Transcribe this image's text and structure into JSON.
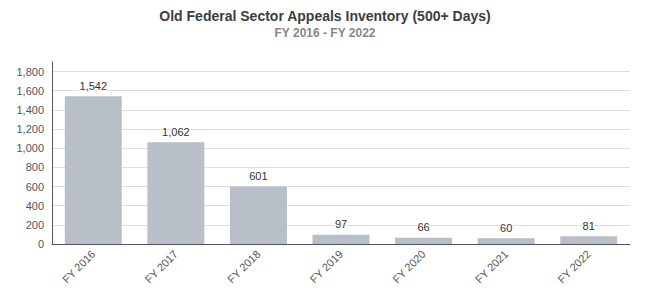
{
  "chart_data": {
    "type": "bar",
    "title": "Old Federal Sector Appeals Inventory (500+ Days)",
    "subtitle": "FY 2016 - FY 2022",
    "categories": [
      "FY 2016",
      "FY 2017",
      "FY 2018",
      "FY 2019",
      "FY 2020",
      "FY 2021",
      "FY 2022"
    ],
    "values": [
      1542,
      1062,
      601,
      97,
      66,
      60,
      81
    ],
    "value_labels": [
      "1,542",
      "1,062",
      "601",
      "97",
      "66",
      "60",
      "81"
    ],
    "data_labels": true,
    "color": "#b8bfc8",
    "ylim": [
      0,
      1900
    ],
    "yticks": [
      0,
      200,
      400,
      600,
      800,
      {
        "value": 1000,
        "label": "1,000"
      },
      {
        "value": 1200,
        "label": "1,200"
      },
      {
        "value": 1400,
        "label": "1,400"
      },
      {
        "value": 1600,
        "label": "1,600"
      },
      {
        "value": 1800,
        "label": "1,800"
      }
    ],
    "grid": true
  }
}
